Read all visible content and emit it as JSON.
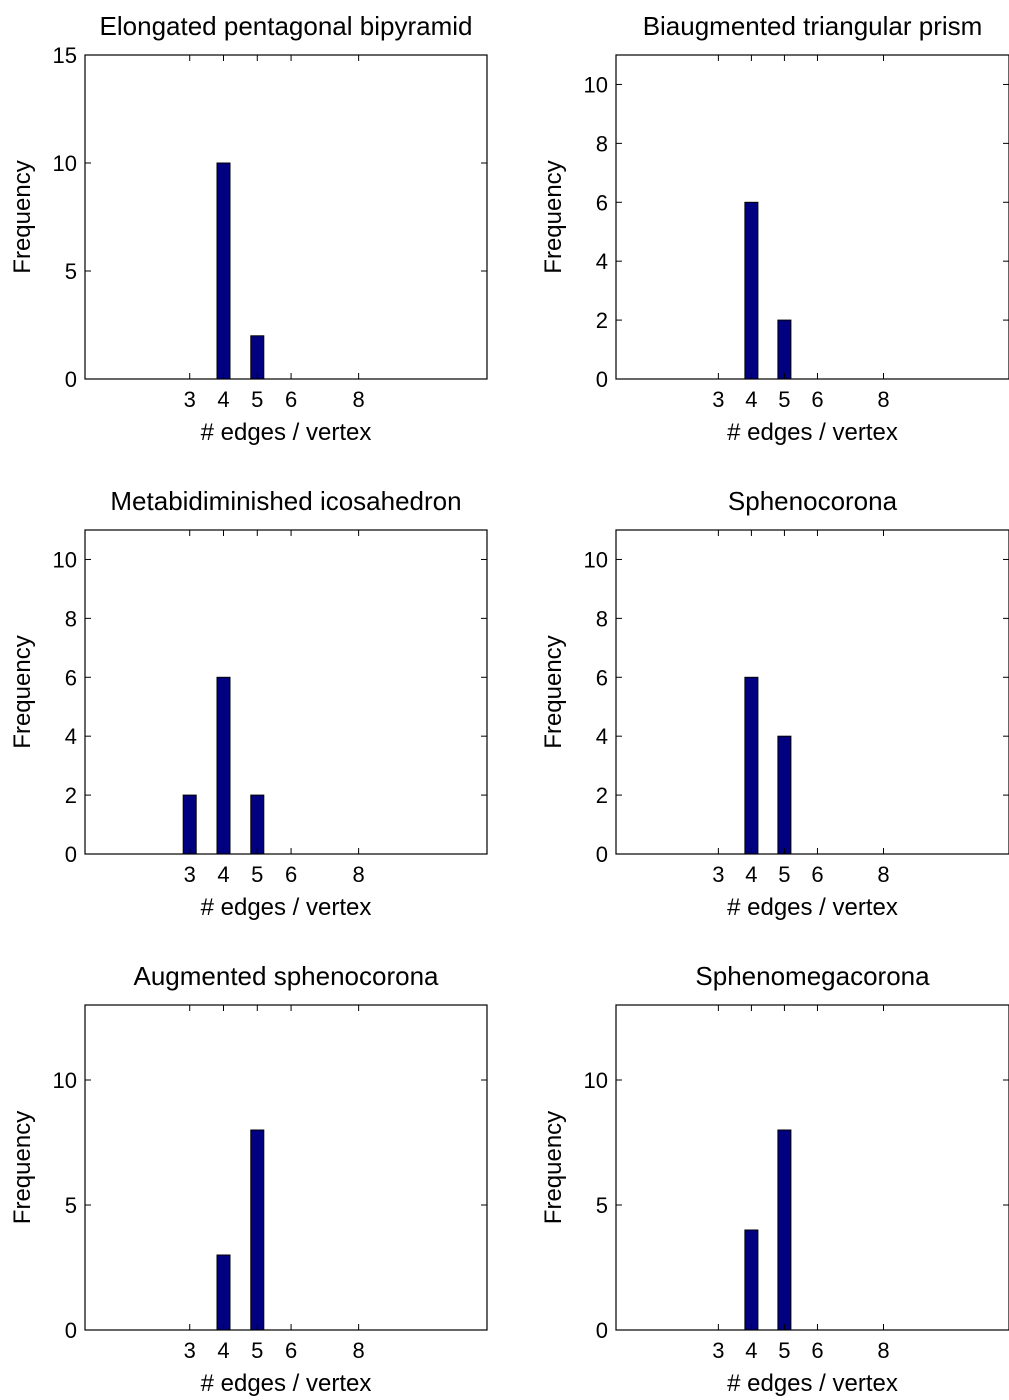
{
  "figure": {
    "bar_color": "#000080",
    "axis_color": "#000000",
    "background": "#ffffff"
  },
  "chart_data": [
    {
      "type": "bar",
      "title": "Elongated pentagonal bipyramid",
      "xlabel": "# edges / vertex",
      "ylabel": "Frequency",
      "x": [
        3,
        4,
        5,
        6,
        8
      ],
      "values": [
        0,
        10,
        2,
        0,
        0
      ],
      "xticks": [
        3,
        4,
        5,
        6,
        8
      ],
      "xlim": [
        -0.1,
        11.8
      ],
      "ylim": [
        0,
        15
      ],
      "yticks": [
        0,
        5,
        10,
        15
      ],
      "grid": false
    },
    {
      "type": "bar",
      "title": "Biaugmented triangular prism",
      "xlabel": "# edges / vertex",
      "ylabel": "Frequency",
      "x": [
        3,
        4,
        5,
        6,
        8
      ],
      "values": [
        0,
        6,
        2,
        0,
        0
      ],
      "xticks": [
        3,
        4,
        5,
        6,
        8
      ],
      "xlim": [
        -0.1,
        11.8
      ],
      "ylim": [
        0,
        11
      ],
      "yticks": [
        0,
        2,
        4,
        6,
        8,
        10
      ],
      "grid": false
    },
    {
      "type": "bar",
      "title": "Metabidiminished icosahedron",
      "xlabel": "# edges / vertex",
      "ylabel": "Frequency",
      "x": [
        3,
        4,
        5,
        6,
        8
      ],
      "values": [
        2,
        6,
        2,
        0,
        0
      ],
      "xticks": [
        3,
        4,
        5,
        6,
        8
      ],
      "xlim": [
        -0.1,
        11.8
      ],
      "ylim": [
        0,
        11
      ],
      "yticks": [
        0,
        2,
        4,
        6,
        8,
        10
      ],
      "grid": false
    },
    {
      "type": "bar",
      "title": "Sphenocorona",
      "xlabel": "# edges / vertex",
      "ylabel": "Frequency",
      "x": [
        3,
        4,
        5,
        6,
        8
      ],
      "values": [
        0,
        6,
        4,
        0,
        0
      ],
      "xticks": [
        3,
        4,
        5,
        6,
        8
      ],
      "xlim": [
        -0.1,
        11.8
      ],
      "ylim": [
        0,
        11
      ],
      "yticks": [
        0,
        2,
        4,
        6,
        8,
        10
      ],
      "grid": false
    },
    {
      "type": "bar",
      "title": "Augmented sphenocorona",
      "xlabel": "# edges / vertex",
      "ylabel": "Frequency",
      "x": [
        3,
        4,
        5,
        6,
        8
      ],
      "values": [
        0,
        3,
        8,
        0,
        0
      ],
      "xticks": [
        3,
        4,
        5,
        6,
        8
      ],
      "xlim": [
        -0.1,
        11.8
      ],
      "ylim": [
        0,
        13
      ],
      "yticks": [
        0,
        5,
        10
      ],
      "grid": false
    },
    {
      "type": "bar",
      "title": "Sphenomegacorona",
      "xlabel": "# edges / vertex",
      "ylabel": "Frequency",
      "x": [
        3,
        4,
        5,
        6,
        8
      ],
      "values": [
        0,
        4,
        8,
        0,
        0
      ],
      "xticks": [
        3,
        4,
        5,
        6,
        8
      ],
      "xlim": [
        -0.1,
        11.8
      ],
      "ylim": [
        0,
        13
      ],
      "yticks": [
        0,
        5,
        10
      ],
      "grid": false
    }
  ]
}
